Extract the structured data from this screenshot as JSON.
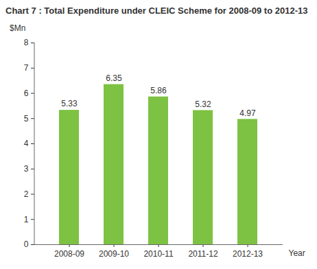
{
  "chart_data": {
    "type": "bar",
    "title": "Chart 7 : Total Expenditure under CLEIC Scheme for 2008-09 to 2012-13",
    "y_label": "$Mn",
    "x_label": "Year",
    "categories": [
      "2008-09",
      "2009-10",
      "2010-11",
      "2011-12",
      "2012-13"
    ],
    "values": [
      5.33,
      6.35,
      5.86,
      5.32,
      4.97
    ],
    "color": "#7dc242",
    "ylim": [
      0,
      8
    ],
    "yticks": [
      0,
      1,
      2,
      3,
      4,
      5,
      6,
      7,
      8
    ],
    "grid": false,
    "data_labels": true
  }
}
